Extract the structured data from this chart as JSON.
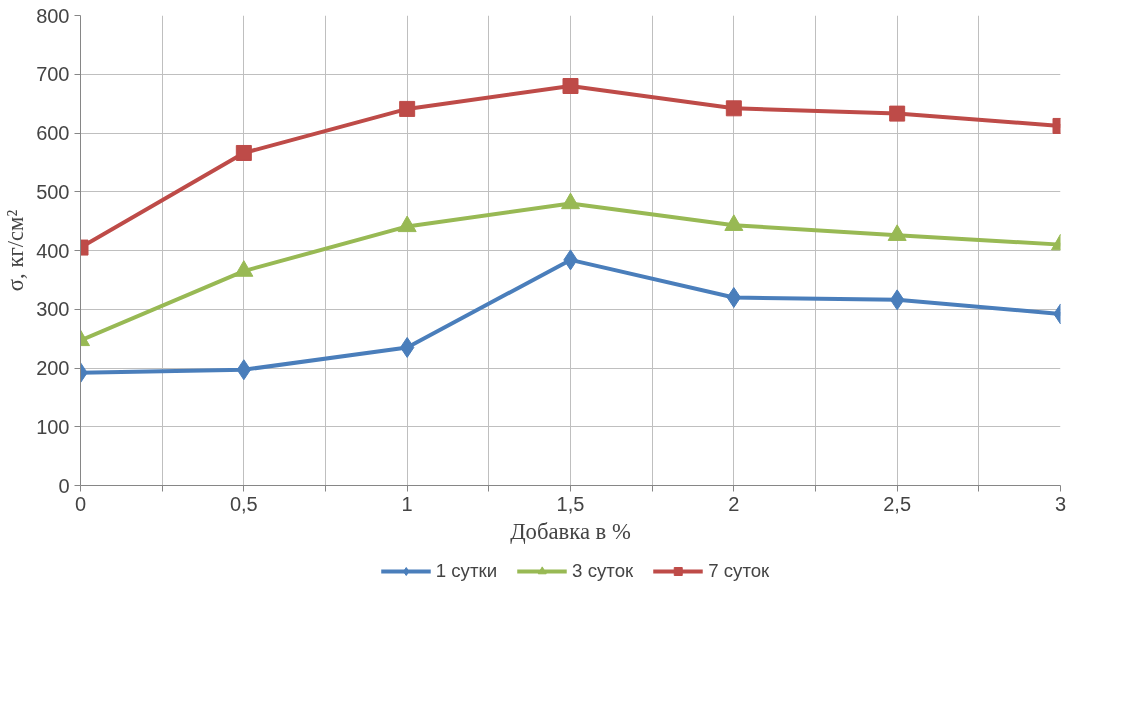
{
  "chart_data": {
    "type": "line",
    "xlabel": "Добавка в %",
    "ylabel": "σ, кг/см²",
    "x": [
      0,
      0.5,
      1,
      1.5,
      2,
      2.5,
      3
    ],
    "series": [
      {
        "name": "1 сутки",
        "color": "#4a7ebb",
        "marker": "diamond",
        "values": [
          192,
          197,
          235,
          384,
          320,
          316,
          292
        ]
      },
      {
        "name": "3 суток",
        "color": "#98b954",
        "marker": "triangle",
        "values": [
          247,
          365,
          441,
          480,
          443,
          426,
          410
        ]
      },
      {
        "name": "7 суток",
        "color": "#be4b48",
        "marker": "square",
        "values": [
          405,
          566,
          641,
          680,
          642,
          633,
          612
        ]
      }
    ],
    "xlim": [
      0,
      3
    ],
    "ylim": [
      0,
      800
    ],
    "xticks": [
      0,
      {
        "value": 0.25,
        "label": null
      },
      {
        "value": 0.5,
        "label": "0,5"
      },
      {
        "value": 0.75,
        "label": null
      },
      1,
      {
        "value": 1.25,
        "label": null
      },
      {
        "value": 1.5,
        "label": "1,5"
      },
      {
        "value": 1.75,
        "label": null
      },
      2,
      {
        "value": 2.25,
        "label": null
      },
      {
        "value": 2.5,
        "label": "2,5"
      },
      {
        "value": 2.75,
        "label": null
      },
      3
    ],
    "yticks": [
      0,
      100,
      200,
      300,
      400,
      500,
      600,
      700,
      800
    ],
    "grid": true,
    "legend": "bottom",
    "line_style": "solid"
  }
}
